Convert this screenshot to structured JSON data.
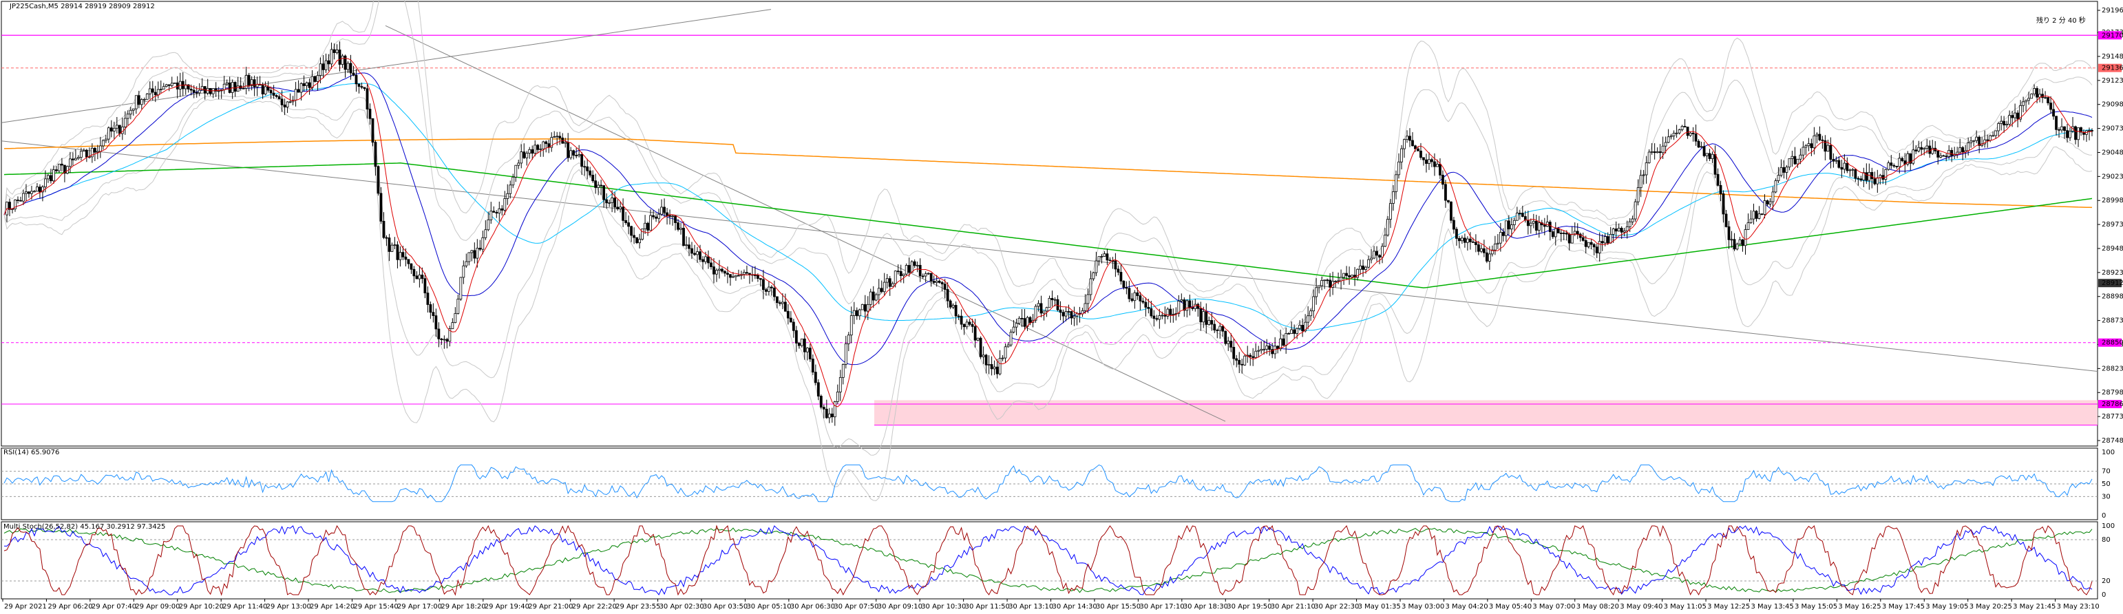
{
  "header": {
    "symbol_line": "JP225Cash,M5  28914 28919 28909 28912",
    "countdown": "残り 2 分 40 秒"
  },
  "colors": {
    "pink_line": "#ff00ff",
    "orange_ma": "#ff8c00",
    "green_ma": "#00b000",
    "blue_ma": "#0000cc",
    "cyan_ma": "#00bfff",
    "red_ma": "#dd0000",
    "band_gray": "#c8c8c8",
    "zone_fill": "#ffd5dd",
    "rsi_line": "#1e90ff",
    "stoch_red": "#a00000",
    "stoch_blue": "#0000ff",
    "stoch_green": "#008000"
  },
  "price_axis": {
    "labels": [
      "29196",
      "29173",
      "29148",
      "29123",
      "29098",
      "29073",
      "29048",
      "29023",
      "28998",
      "28973",
      "28948",
      "28923",
      "28898",
      "28873",
      "28848",
      "28823",
      "28798",
      "28773",
      "28748"
    ],
    "badges": [
      {
        "value": "29170",
        "color": "#ff00ff"
      },
      {
        "value": "29136",
        "color": "#ff6666"
      },
      {
        "value": "28912",
        "color": "#333333"
      },
      {
        "value": "28850",
        "color": "#ff00ff"
      },
      {
        "value": "28786",
        "color": "#ff00ff"
      }
    ]
  },
  "rsi_panel": {
    "title": "RSI(14) 65.9076",
    "levels": [
      "100",
      "70",
      "50",
      "30",
      "0"
    ]
  },
  "stoch_panel": {
    "title": "Multi Stoch(26,52,82) 45.167 30.2912 97.3425",
    "levels": [
      "100",
      "80",
      "20",
      "0"
    ]
  },
  "time_axis": {
    "labels": [
      "29 Apr 2021",
      "29 Apr 06:20",
      "29 Apr 07:40",
      "29 Apr 09:00",
      "29 Apr 10:20",
      "29 Apr 11:40",
      "29 Apr 13:00",
      "29 Apr 14:20",
      "29 Apr 15:40",
      "29 Apr 17:00",
      "29 Apr 18:20",
      "29 Apr 19:40",
      "29 Apr 21:00",
      "29 Apr 22:20",
      "29 Apr 23:55",
      "30 Apr 02:30",
      "30 Apr 03:50",
      "30 Apr 05:10",
      "30 Apr 06:30",
      "30 Apr 07:50",
      "30 Apr 09:10",
      "30 Apr 10:30",
      "30 Apr 11:50",
      "30 Apr 13:10",
      "30 Apr 14:30",
      "30 Apr 15:50",
      "30 Apr 17:10",
      "30 Apr 18:30",
      "30 Apr 19:50",
      "30 Apr 21:10",
      "30 Apr 22:30",
      "3 May 01:35",
      "3 May 03:00",
      "3 May 04:20",
      "3 May 05:40",
      "3 May 07:00",
      "3 May 08:20",
      "3 May 09:40",
      "3 May 11:05",
      "3 May 12:25",
      "3 May 13:45",
      "3 May 15:05",
      "3 May 16:25",
      "3 May 17:45",
      "3 May 19:05",
      "3 May 20:25",
      "3 May 21:45",
      "3 May 23:10"
    ]
  },
  "chart_data": {
    "type": "candlestick",
    "title": "JP225Cash,M5",
    "ylim": [
      28748,
      29196
    ],
    "horizontal_levels": [
      29170,
      29136,
      28850,
      28786,
      28764
    ],
    "zone": {
      "from_price": 28764,
      "to_price": 28790
    },
    "price_path": [
      [
        0,
        28990
      ],
      [
        1,
        29005
      ],
      [
        2,
        29030
      ],
      [
        3,
        29045
      ],
      [
        4,
        29070
      ],
      [
        5,
        29105
      ],
      [
        6,
        29120
      ],
      [
        7,
        29110
      ],
      [
        8,
        29115
      ],
      [
        9,
        29122
      ],
      [
        10,
        29100
      ],
      [
        11,
        29118
      ],
      [
        12,
        29150
      ],
      [
        13,
        29120
      ],
      [
        14,
        28950
      ],
      [
        15,
        28920
      ],
      [
        16,
        28850
      ],
      [
        17,
        28940
      ],
      [
        18,
        28990
      ],
      [
        19,
        29050
      ],
      [
        20,
        29060
      ],
      [
        21,
        29040
      ],
      [
        22,
        29000
      ],
      [
        23,
        28960
      ],
      [
        24,
        28990
      ],
      [
        25,
        28950
      ],
      [
        26,
        28920
      ],
      [
        27,
        28920
      ],
      [
        28,
        28900
      ],
      [
        29,
        28850
      ],
      [
        30,
        28770
      ],
      [
        31,
        28880
      ],
      [
        32,
        28910
      ],
      [
        33,
        28930
      ],
      [
        34,
        28910
      ],
      [
        35,
        28870
      ],
      [
        36,
        28820
      ],
      [
        37,
        28870
      ],
      [
        38,
        28890
      ],
      [
        39,
        28880
      ],
      [
        40,
        28940
      ],
      [
        41,
        28900
      ],
      [
        42,
        28880
      ],
      [
        43,
        28890
      ],
      [
        44,
        28870
      ],
      [
        45,
        28830
      ],
      [
        46,
        28840
      ],
      [
        47,
        28860
      ],
      [
        48,
        28910
      ],
      [
        49,
        28920
      ],
      [
        50,
        28940
      ],
      [
        51,
        29060
      ],
      [
        52,
        29040
      ],
      [
        53,
        28960
      ],
      [
        54,
        28940
      ],
      [
        55,
        28980
      ],
      [
        56,
        28970
      ],
      [
        57,
        28960
      ],
      [
        58,
        28950
      ],
      [
        59,
        28970
      ],
      [
        60,
        29050
      ],
      [
        61,
        29070
      ],
      [
        62,
        29050
      ],
      [
        63,
        28950
      ],
      [
        64,
        28990
      ],
      [
        65,
        29040
      ],
      [
        66,
        29060
      ],
      [
        67,
        29030
      ],
      [
        68,
        29020
      ],
      [
        69,
        29040
      ],
      [
        70,
        29050
      ],
      [
        71,
        29050
      ],
      [
        72,
        29060
      ],
      [
        73,
        29080
      ],
      [
        74,
        29110
      ],
      [
        75,
        29070
      ],
      [
        76,
        29065
      ]
    ],
    "rsi": {
      "value": 65.9076,
      "levels": [
        70,
        50,
        30
      ]
    },
    "stoch": {
      "values": [
        45.167,
        30.2912,
        97.3425
      ],
      "levels": [
        80,
        20
      ]
    }
  }
}
